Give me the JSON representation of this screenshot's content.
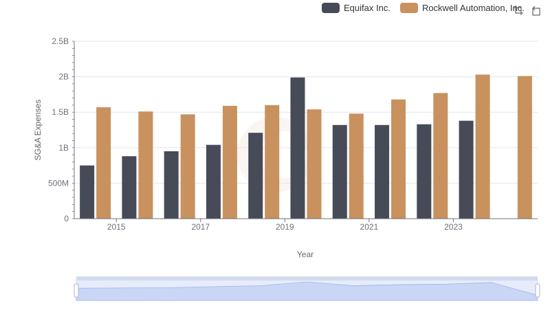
{
  "chart_data": {
    "type": "bar",
    "title": "",
    "xlabel": "Year",
    "ylabel": "SG&A Expenses",
    "x": [
      2014,
      2015,
      2016,
      2017,
      2018,
      2019,
      2020,
      2021,
      2022,
      2023,
      2024
    ],
    "x_tick_labels": [
      "2015",
      "2017",
      "2019",
      "2021",
      "2023"
    ],
    "y_tick_labels": [
      "0",
      "500M",
      "1B",
      "1.5B",
      "2B",
      "2.5B"
    ],
    "ylim": [
      0,
      2500000000
    ],
    "grid": true,
    "legend_position": "top-right",
    "series": [
      {
        "name": "Equifax Inc.",
        "color": "#474a57",
        "values": [
          750000000,
          880000000,
          950000000,
          1040000000,
          1210000000,
          1990000000,
          1320000000,
          1320000000,
          1330000000,
          1380000000,
          null
        ]
      },
      {
        "name": "Rockwell Automation, Inc.",
        "color": "#c8915e",
        "values": [
          1570000000,
          1510000000,
          1470000000,
          1590000000,
          1600000000,
          1540000000,
          1480000000,
          1680000000,
          1770000000,
          2030000000,
          2010000000
        ]
      }
    ]
  },
  "toolbox": {
    "icons": [
      "zoom-icon",
      "restore-icon"
    ]
  },
  "datazoom": {
    "range": [
      0,
      100
    ]
  }
}
